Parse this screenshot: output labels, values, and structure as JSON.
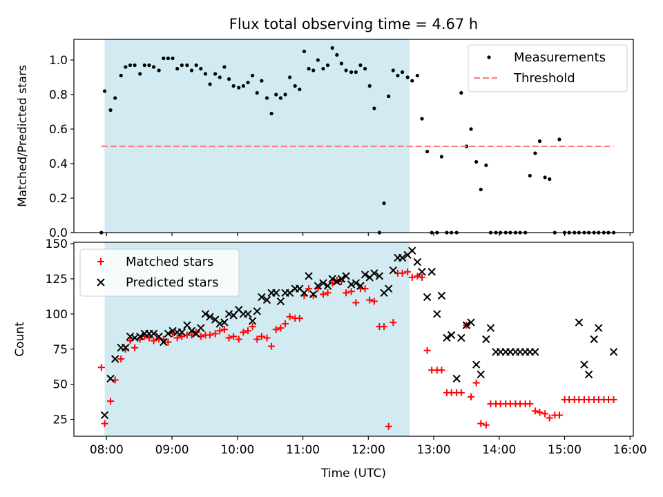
{
  "chart_data": [
    {
      "type": "scatter",
      "title": "Flux total observing time = 4.67 h",
      "ylabel": "Matched/Predicted stars",
      "xlabel": "",
      "xlim": [
        7.5,
        16.05
      ],
      "ylim": [
        0.0,
        1.12
      ],
      "yticks": [
        0.0,
        0.2,
        0.4,
        0.6,
        0.8,
        1.0
      ],
      "ytick_labels": [
        "0.0",
        "0.2",
        "0.4",
        "0.6",
        "0.8",
        "1.0"
      ],
      "shaded_span": [
        7.97,
        12.63
      ],
      "shaded_color": "#add8e6",
      "legend_position": "top-right",
      "series": [
        {
          "name": "Measurements",
          "marker": "dot",
          "color": "#000000",
          "x": [
            7.92,
            7.97,
            8.06,
            8.13,
            8.22,
            8.29,
            8.36,
            8.43,
            8.51,
            8.58,
            8.65,
            8.72,
            8.8,
            8.87,
            8.94,
            9.01,
            9.08,
            9.15,
            9.23,
            9.3,
            9.37,
            9.44,
            9.51,
            9.58,
            9.66,
            9.73,
            9.8,
            9.87,
            9.94,
            10.02,
            10.09,
            10.16,
            10.23,
            10.3,
            10.37,
            10.45,
            10.52,
            10.59,
            10.66,
            10.73,
            10.8,
            10.88,
            10.95,
            11.02,
            11.09,
            11.16,
            11.23,
            11.31,
            11.38,
            11.45,
            11.52,
            11.59,
            11.66,
            11.74,
            11.81,
            11.88,
            11.95,
            12.02,
            12.09,
            12.17,
            12.24,
            12.31,
            12.38,
            12.45,
            12.52,
            12.6,
            12.67,
            12.75,
            12.82,
            12.9,
            12.97,
            13.05,
            13.12,
            13.2,
            13.27,
            13.35,
            13.42,
            13.5,
            13.57,
            13.65,
            13.72,
            13.8,
            13.87,
            13.95,
            14.02,
            14.1,
            14.17,
            14.25,
            14.32,
            14.4,
            14.47,
            14.55,
            14.62,
            14.7,
            14.77,
            14.85,
            14.92,
            15.0,
            15.07,
            15.15,
            15.22,
            15.3,
            15.37,
            15.45,
            15.52,
            15.6,
            15.67,
            15.75
          ],
          "y": [
            0.0,
            0.82,
            0.71,
            0.78,
            0.91,
            0.96,
            0.97,
            0.97,
            0.92,
            0.97,
            0.97,
            0.96,
            0.94,
            1.01,
            1.01,
            1.01,
            0.95,
            0.97,
            0.97,
            0.94,
            0.97,
            0.95,
            0.92,
            0.86,
            0.92,
            0.9,
            0.96,
            0.89,
            0.85,
            0.84,
            0.85,
            0.87,
            0.91,
            0.81,
            0.88,
            0.78,
            0.69,
            0.8,
            0.78,
            0.8,
            0.9,
            0.85,
            0.83,
            1.05,
            0.95,
            0.94,
            1.0,
            0.95,
            0.97,
            1.07,
            1.03,
            0.98,
            0.94,
            0.93,
            0.93,
            0.97,
            0.95,
            0.85,
            0.72,
            0.0,
            0.17,
            0.79,
            0.94,
            0.91,
            0.93,
            0.9,
            0.88,
            0.91,
            0.66,
            0.47,
            0.0,
            0.0,
            0.44,
            0.0,
            0.0,
            0.0,
            0.81,
            0.5,
            0.6,
            0.41,
            0.25,
            0.39,
            0.0,
            0.0,
            0.0,
            0.0,
            0.0,
            0.0,
            0.0,
            0.0,
            0.33,
            0.46,
            0.53,
            0.32,
            0.31,
            0.0,
            0.54,
            0.0,
            0.0,
            0.0,
            0.0,
            0.0,
            0.0,
            0.0,
            0.0,
            0.0,
            0.0,
            0.0
          ]
        },
        {
          "name": "Threshold",
          "marker": "dashed-line",
          "color": "#ff7f7f",
          "x": [
            7.92,
            15.75
          ],
          "y": [
            0.5,
            0.5
          ]
        }
      ]
    },
    {
      "type": "scatter",
      "title": "",
      "ylabel": "Count",
      "xlabel": "Time (UTC)",
      "xlim": [
        7.5,
        16.05
      ],
      "ylim": [
        13,
        151
      ],
      "yticks": [
        25,
        50,
        75,
        100,
        125,
        150
      ],
      "ytick_labels": [
        "25",
        "50",
        "75",
        "100",
        "125",
        "150"
      ],
      "xticks": [
        8,
        9,
        10,
        11,
        12,
        13,
        14,
        15,
        16
      ],
      "xtick_labels": [
        "08:00",
        "09:00",
        "10:00",
        "11:00",
        "12:00",
        "13:00",
        "14:00",
        "15:00",
        "16:00"
      ],
      "shaded_span": [
        7.97,
        12.63
      ],
      "shaded_color": "#add8e6",
      "legend_position": "top-left",
      "series": [
        {
          "name": "Matched stars",
          "marker": "plus",
          "color": "#ff0000",
          "x": [
            7.92,
            7.97,
            8.06,
            8.13,
            8.22,
            8.29,
            8.36,
            8.43,
            8.51,
            8.58,
            8.65,
            8.72,
            8.8,
            8.87,
            8.94,
            9.01,
            9.08,
            9.15,
            9.23,
            9.3,
            9.37,
            9.44,
            9.51,
            9.58,
            9.66,
            9.73,
            9.8,
            9.87,
            9.94,
            10.02,
            10.09,
            10.16,
            10.23,
            10.3,
            10.37,
            10.45,
            10.52,
            10.59,
            10.66,
            10.73,
            10.8,
            10.88,
            10.95,
            11.02,
            11.09,
            11.16,
            11.23,
            11.31,
            11.38,
            11.45,
            11.52,
            11.59,
            11.66,
            11.74,
            11.81,
            11.88,
            11.95,
            12.02,
            12.09,
            12.17,
            12.24,
            12.31,
            12.38,
            12.45,
            12.52,
            12.6,
            12.67,
            12.75,
            12.82,
            12.9,
            12.97,
            13.05,
            13.12,
            13.2,
            13.27,
            13.35,
            13.42,
            13.5,
            13.57,
            13.65,
            13.72,
            13.8,
            13.87,
            13.95,
            14.02,
            14.1,
            14.17,
            14.25,
            14.32,
            14.4,
            14.47,
            14.55,
            14.62,
            14.7,
            14.77,
            14.85,
            14.92,
            15.0,
            15.07,
            15.15,
            15.22,
            15.3,
            15.37,
            15.45,
            15.52,
            15.6,
            15.67,
            15.75
          ],
          "y": [
            62,
            22,
            38,
            53,
            68,
            75,
            81,
            76,
            82,
            84,
            83,
            81,
            82,
            82,
            80,
            86,
            83,
            84,
            85,
            85,
            87,
            84,
            85,
            85,
            86,
            88,
            89,
            83,
            84,
            82,
            87,
            88,
            91,
            82,
            84,
            83,
            77,
            89,
            90,
            93,
            98,
            97,
            97,
            113,
            118,
            113,
            118,
            114,
            115,
            122,
            124,
            123,
            115,
            116,
            108,
            118,
            118,
            110,
            109,
            91,
            91,
            20,
            94,
            129,
            129,
            130,
            126,
            127,
            126,
            74,
            60,
            60,
            60,
            44,
            44,
            44,
            44,
            92,
            41,
            51,
            22,
            21,
            36,
            36,
            36,
            36,
            36,
            36,
            36,
            36,
            36,
            31,
            30,
            29,
            26,
            28,
            28,
            39,
            39,
            39,
            39,
            39,
            39,
            39,
            39,
            39,
            39,
            39
          ],
          "y_note": "series values read from plot"
        },
        {
          "name": "Predicted stars",
          "marker": "x",
          "color": "#000000",
          "x": [
            7.97,
            8.06,
            8.13,
            8.22,
            8.29,
            8.36,
            8.43,
            8.51,
            8.58,
            8.65,
            8.72,
            8.8,
            8.87,
            8.94,
            9.01,
            9.08,
            9.15,
            9.23,
            9.3,
            9.37,
            9.44,
            9.51,
            9.58,
            9.66,
            9.73,
            9.8,
            9.87,
            9.94,
            10.02,
            10.09,
            10.16,
            10.23,
            10.3,
            10.37,
            10.45,
            10.52,
            10.59,
            10.66,
            10.73,
            10.8,
            10.88,
            10.95,
            11.02,
            11.09,
            11.16,
            11.23,
            11.31,
            11.38,
            11.45,
            11.52,
            11.59,
            11.66,
            11.74,
            11.81,
            11.88,
            11.95,
            12.02,
            12.09,
            12.17,
            12.24,
            12.31,
            12.38,
            12.45,
            12.52,
            12.6,
            12.67,
            12.75,
            12.82,
            12.9,
            12.97,
            13.05,
            13.12,
            13.2,
            13.27,
            13.35,
            13.42,
            13.5,
            13.57,
            13.65,
            13.72,
            13.8,
            13.87,
            13.95,
            14.02,
            14.1,
            14.17,
            14.25,
            14.32,
            14.4,
            14.47,
            14.55,
            15.22,
            15.3,
            15.37,
            15.45,
            15.52,
            15.75
          ],
          "y": [
            28,
            54,
            68,
            76,
            76,
            84,
            83,
            84,
            86,
            86,
            86,
            84,
            80,
            86,
            88,
            87,
            87,
            92,
            88,
            86,
            90,
            100,
            98,
            96,
            93,
            94,
            100,
            99,
            103,
            100,
            100,
            95,
            102,
            112,
            110,
            115,
            115,
            109,
            115,
            115,
            118,
            118,
            115,
            127,
            114,
            120,
            122,
            120,
            125,
            123,
            125,
            127,
            121,
            122,
            120,
            128,
            126,
            129,
            127,
            115,
            118,
            131,
            140,
            140,
            142,
            145,
            137,
            130,
            112,
            130,
            100,
            113,
            83,
            85,
            54,
            83,
            92,
            94,
            64,
            57,
            82,
            90,
            73,
            73,
            73,
            73,
            73,
            73,
            73,
            73,
            73,
            94,
            64,
            57,
            82,
            90,
            73
          ]
        }
      ]
    }
  ]
}
